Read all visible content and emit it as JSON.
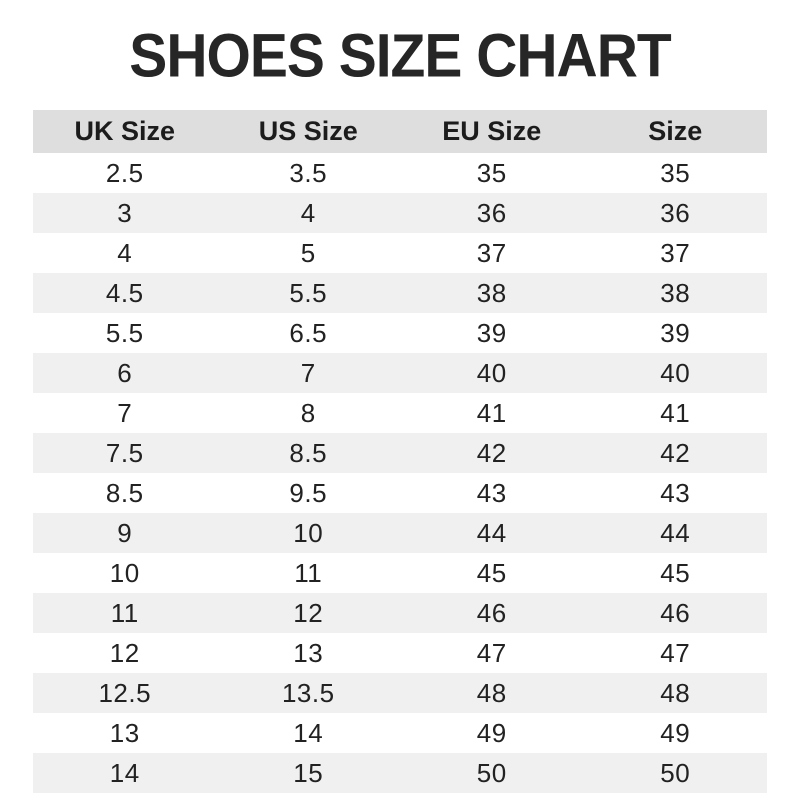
{
  "title": "SHOES SIZE CHART",
  "colors": {
    "header_bg": "#dedede",
    "row_alt_bg": "#f0f0f0",
    "row_bg": "#ffffff",
    "title_text": "#262626",
    "cell_text": "#222222"
  },
  "table": {
    "headers": [
      "UK Size",
      "US Size",
      "EU Size",
      "Size"
    ],
    "rows": [
      [
        "2.5",
        "3.5",
        "35",
        "35"
      ],
      [
        "3",
        "4",
        "36",
        "36"
      ],
      [
        "4",
        "5",
        "37",
        "37"
      ],
      [
        "4.5",
        "5.5",
        "38",
        "38"
      ],
      [
        "5.5",
        "6.5",
        "39",
        "39"
      ],
      [
        "6",
        "7",
        "40",
        "40"
      ],
      [
        "7",
        "8",
        "41",
        "41"
      ],
      [
        "7.5",
        "8.5",
        "42",
        "42"
      ],
      [
        "8.5",
        "9.5",
        "43",
        "43"
      ],
      [
        "9",
        "10",
        "44",
        "44"
      ],
      [
        "10",
        "11",
        "45",
        "45"
      ],
      [
        "11",
        "12",
        "46",
        "46"
      ],
      [
        "12",
        "13",
        "47",
        "47"
      ],
      [
        "12.5",
        "13.5",
        "48",
        "48"
      ],
      [
        "13",
        "14",
        "49",
        "49"
      ],
      [
        "14",
        "15",
        "50",
        "50"
      ]
    ]
  },
  "chart_data": {
    "type": "table",
    "title": "SHOES SIZE CHART",
    "columns": [
      "UK Size",
      "US Size",
      "EU Size",
      "Size"
    ],
    "rows": [
      [
        2.5,
        3.5,
        35,
        35
      ],
      [
        3,
        4,
        36,
        36
      ],
      [
        4,
        5,
        37,
        37
      ],
      [
        4.5,
        5.5,
        38,
        38
      ],
      [
        5.5,
        6.5,
        39,
        39
      ],
      [
        6,
        7,
        40,
        40
      ],
      [
        7,
        8,
        41,
        41
      ],
      [
        7.5,
        8.5,
        42,
        42
      ],
      [
        8.5,
        9.5,
        43,
        43
      ],
      [
        9,
        10,
        44,
        44
      ],
      [
        10,
        11,
        45,
        45
      ],
      [
        11,
        12,
        46,
        46
      ],
      [
        12,
        13,
        47,
        47
      ],
      [
        12.5,
        13.5,
        48,
        48
      ],
      [
        13,
        14,
        49,
        49
      ],
      [
        14,
        15,
        50,
        50
      ]
    ],
    "layout_hints": {
      "header_background": "#dedede",
      "alternating_rows": true,
      "row_stripe_color": "#f0f0f0",
      "text_alignment": "center"
    }
  }
}
